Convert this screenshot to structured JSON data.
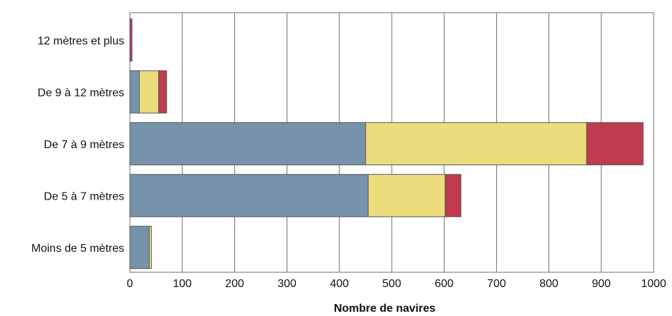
{
  "chart_data": {
    "type": "bar",
    "orientation": "horizontal",
    "stacked": true,
    "title": "",
    "xlabel": "Nombre de navires",
    "ylabel": "",
    "xlim": [
      0,
      1000
    ],
    "xticks": [
      0,
      100,
      200,
      300,
      400,
      500,
      600,
      700,
      800,
      900,
      1000
    ],
    "grid": true,
    "legend": "none",
    "categories": [
      "12 mètres et plus",
      "De 9 à 12 mètres",
      "De 7 à 9 mètres",
      "De 5 à 7 mètres",
      "Moins de 5 mètres"
    ],
    "series": [
      {
        "color": "#7793ab",
        "values": [
          0,
          18,
          450,
          455,
          37
        ]
      },
      {
        "color": "#ecdc7c",
        "values": [
          0,
          37,
          422,
          147,
          4
        ]
      },
      {
        "color": "#bf3b50",
        "values": [
          4,
          15,
          108,
          30,
          0
        ]
      }
    ]
  }
}
